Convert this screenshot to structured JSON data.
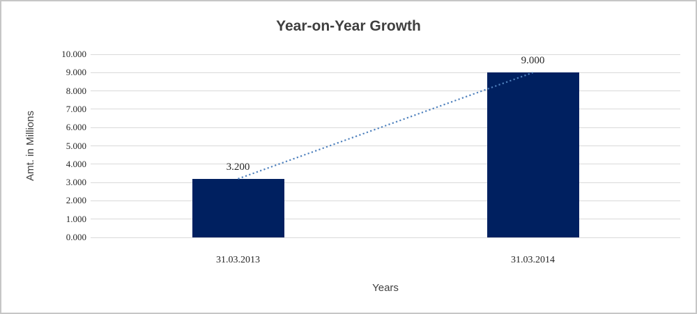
{
  "chart_data": {
    "type": "bar",
    "title": "Year-on-Year Growth",
    "xlabel": "Years",
    "ylabel": "Amt. in Millions",
    "categories": [
      "31.03.2013",
      "31.03.2014"
    ],
    "values": [
      3.2,
      9.0
    ],
    "value_labels": [
      "3.200",
      "9.000"
    ],
    "y_ticks": [
      "0.000",
      "1.000",
      "2.000",
      "3.000",
      "4.000",
      "5.000",
      "6.000",
      "7.000",
      "8.000",
      "9.000",
      "10.000"
    ],
    "ylim": [
      0,
      10
    ],
    "grid": true,
    "legend": "none",
    "trendline": true,
    "colors": {
      "bar": "#002060",
      "trendline": "#4f81bd",
      "gridline": "#d9d9d9",
      "title_text": "#3f3f3f",
      "axis_title_text": "#404040",
      "tick_text": "#262626",
      "frame_border": "#c6c6c6",
      "background": "#ffffff"
    }
  }
}
